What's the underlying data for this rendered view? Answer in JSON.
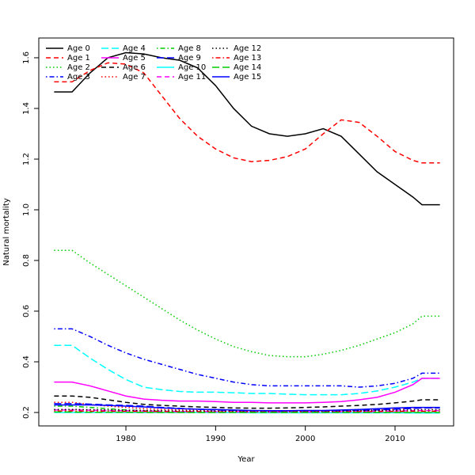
{
  "chart_data": {
    "type": "line",
    "x_label": "Year",
    "y_label": "Natural mortality",
    "x": [
      1972,
      1974,
      1976,
      1978,
      1980,
      1982,
      1984,
      1986,
      1988,
      1990,
      1992,
      1994,
      1996,
      1998,
      2000,
      2002,
      2004,
      2006,
      2008,
      2010,
      2012,
      2013,
      2015
    ],
    "xlim": [
      1970.29,
      2016.53
    ],
    "ylim": [
      0.147,
      1.678
    ],
    "xticks": [
      1980,
      1990,
      2000,
      2010
    ],
    "yticks": [
      0.2,
      0.4,
      0.6,
      0.8,
      {
        "value": 1,
        "label": "1.0"
      },
      1.2,
      1.4,
      1.6
    ],
    "legend": "top-left",
    "series": [
      {
        "name": "Age 0",
        "color": "#000000",
        "dash": "solid",
        "values": [
          1.465,
          1.465,
          1.54,
          1.6,
          1.62,
          1.615,
          1.6,
          1.59,
          1.56,
          1.49,
          1.4,
          1.33,
          1.3,
          1.29,
          1.3,
          1.32,
          1.29,
          1.22,
          1.15,
          1.1,
          1.05,
          1.02,
          1.02
        ]
      },
      {
        "name": "Age 1",
        "color": "#ff0000",
        "dash": "dashed",
        "values": [
          1.505,
          1.505,
          1.55,
          1.58,
          1.575,
          1.54,
          1.45,
          1.36,
          1.29,
          1.24,
          1.205,
          1.19,
          1.195,
          1.21,
          1.24,
          1.3,
          1.355,
          1.345,
          1.29,
          1.23,
          1.195,
          1.185,
          1.185
        ]
      },
      {
        "name": "Age 2",
        "color": "#00cd00",
        "dash": "dotted",
        "values": [
          0.84,
          0.84,
          0.79,
          0.745,
          0.7,
          0.655,
          0.61,
          0.565,
          0.525,
          0.49,
          0.46,
          0.44,
          0.425,
          0.42,
          0.42,
          0.43,
          0.445,
          0.465,
          0.49,
          0.515,
          0.55,
          0.58,
          0.58
        ]
      },
      {
        "name": "Age 3",
        "color": "#0000ff",
        "dash": "dashdot",
        "values": [
          0.53,
          0.53,
          0.5,
          0.465,
          0.435,
          0.41,
          0.39,
          0.37,
          0.35,
          0.335,
          0.32,
          0.31,
          0.305,
          0.305,
          0.305,
          0.305,
          0.305,
          0.3,
          0.305,
          0.315,
          0.335,
          0.355,
          0.355
        ]
      },
      {
        "name": "Age 4",
        "color": "#00ffff",
        "dash": "longdash",
        "values": [
          0.465,
          0.465,
          0.415,
          0.37,
          0.33,
          0.3,
          0.29,
          0.283,
          0.28,
          0.28,
          0.278,
          0.275,
          0.275,
          0.272,
          0.27,
          0.27,
          0.27,
          0.275,
          0.285,
          0.3,
          0.32,
          0.335,
          0.335
        ]
      },
      {
        "name": "Age 5",
        "color": "#ff00ff",
        "dash": "solid",
        "values": [
          0.32,
          0.32,
          0.305,
          0.285,
          0.265,
          0.253,
          0.248,
          0.245,
          0.245,
          0.243,
          0.24,
          0.24,
          0.238,
          0.238,
          0.238,
          0.24,
          0.243,
          0.25,
          0.26,
          0.28,
          0.31,
          0.335,
          0.335
        ]
      },
      {
        "name": "Age 6",
        "color": "#000000",
        "dash": "dashed",
        "values": [
          0.265,
          0.265,
          0.26,
          0.25,
          0.24,
          0.232,
          0.228,
          0.225,
          0.222,
          0.22,
          0.218,
          0.217,
          0.217,
          0.218,
          0.22,
          0.222,
          0.225,
          0.228,
          0.232,
          0.238,
          0.245,
          0.25,
          0.25
        ]
      },
      {
        "name": "Age 7",
        "color": "#ff0000",
        "dash": "dotted",
        "values": [
          0.24,
          0.24,
          0.232,
          0.225,
          0.22,
          0.215,
          0.212,
          0.21,
          0.208,
          0.207,
          0.206,
          0.206,
          0.205,
          0.205,
          0.205,
          0.206,
          0.207,
          0.208,
          0.21,
          0.213,
          0.216,
          0.218,
          0.218
        ]
      },
      {
        "name": "Age 8",
        "color": "#00cd00",
        "dash": "dashdot",
        "values": [
          0.225,
          0.225,
          0.22,
          0.215,
          0.21,
          0.207,
          0.205,
          0.203,
          0.202,
          0.202,
          0.201,
          0.2,
          0.2,
          0.2,
          0.2,
          0.2,
          0.2,
          0.2,
          0.2,
          0.2,
          0.2,
          0.2,
          0.2
        ]
      },
      {
        "name": "Age 9",
        "color": "#0000ff",
        "dash": "longdash",
        "values": [
          0.235,
          0.235,
          0.233,
          0.23,
          0.228,
          0.225,
          0.22,
          0.216,
          0.213,
          0.21,
          0.208,
          0.206,
          0.205,
          0.205,
          0.205,
          0.206,
          0.207,
          0.208,
          0.21,
          0.213,
          0.216,
          0.218,
          0.218
        ]
      },
      {
        "name": "Age 10",
        "color": "#00ffff",
        "dash": "solid",
        "values": [
          0.2,
          0.2,
          0.2,
          0.2,
          0.2,
          0.2,
          0.2,
          0.2,
          0.2,
          0.2,
          0.2,
          0.199,
          0.199,
          0.199,
          0.199,
          0.199,
          0.199,
          0.199,
          0.199,
          0.199,
          0.198,
          0.198,
          0.198
        ]
      },
      {
        "name": "Age 11",
        "color": "#ff00ff",
        "dash": "dashed",
        "values": [
          0.21,
          0.21,
          0.209,
          0.208,
          0.207,
          0.206,
          0.205,
          0.204,
          0.204,
          0.203,
          0.203,
          0.202,
          0.202,
          0.202,
          0.202,
          0.202,
          0.203,
          0.204,
          0.205,
          0.206,
          0.207,
          0.208,
          0.208
        ]
      },
      {
        "name": "Age 12",
        "color": "#000000",
        "dash": "dotted",
        "values": [
          0.212,
          0.212,
          0.211,
          0.21,
          0.209,
          0.208,
          0.207,
          0.206,
          0.206,
          0.205,
          0.205,
          0.205,
          0.205,
          0.205,
          0.205,
          0.205,
          0.206,
          0.207,
          0.208,
          0.209,
          0.21,
          0.211,
          0.211
        ]
      },
      {
        "name": "Age 13",
        "color": "#ff0000",
        "dash": "dashdot",
        "values": [
          0.206,
          0.206,
          0.205,
          0.205,
          0.204,
          0.204,
          0.203,
          0.203,
          0.203,
          0.202,
          0.202,
          0.202,
          0.202,
          0.202,
          0.202,
          0.202,
          0.202,
          0.203,
          0.203,
          0.204,
          0.205,
          0.205,
          0.205
        ]
      },
      {
        "name": "Age 14",
        "color": "#00cd00",
        "dash": "longdash",
        "values": [
          0.202,
          0.202,
          0.201,
          0.201,
          0.201,
          0.2,
          0.2,
          0.2,
          0.2,
          0.2,
          0.2,
          0.2,
          0.2,
          0.2,
          0.2,
          0.2,
          0.2,
          0.2,
          0.2,
          0.2,
          0.2,
          0.2,
          0.2
        ]
      },
      {
        "name": "Age 15",
        "color": "#0000ff",
        "dash": "solid",
        "values": [
          0.23,
          0.23,
          0.23,
          0.228,
          0.225,
          0.222,
          0.218,
          0.215,
          0.213,
          0.212,
          0.21,
          0.208,
          0.207,
          0.207,
          0.208,
          0.208,
          0.21,
          0.212,
          0.215,
          0.218,
          0.22,
          0.22,
          0.22
        ]
      }
    ]
  }
}
